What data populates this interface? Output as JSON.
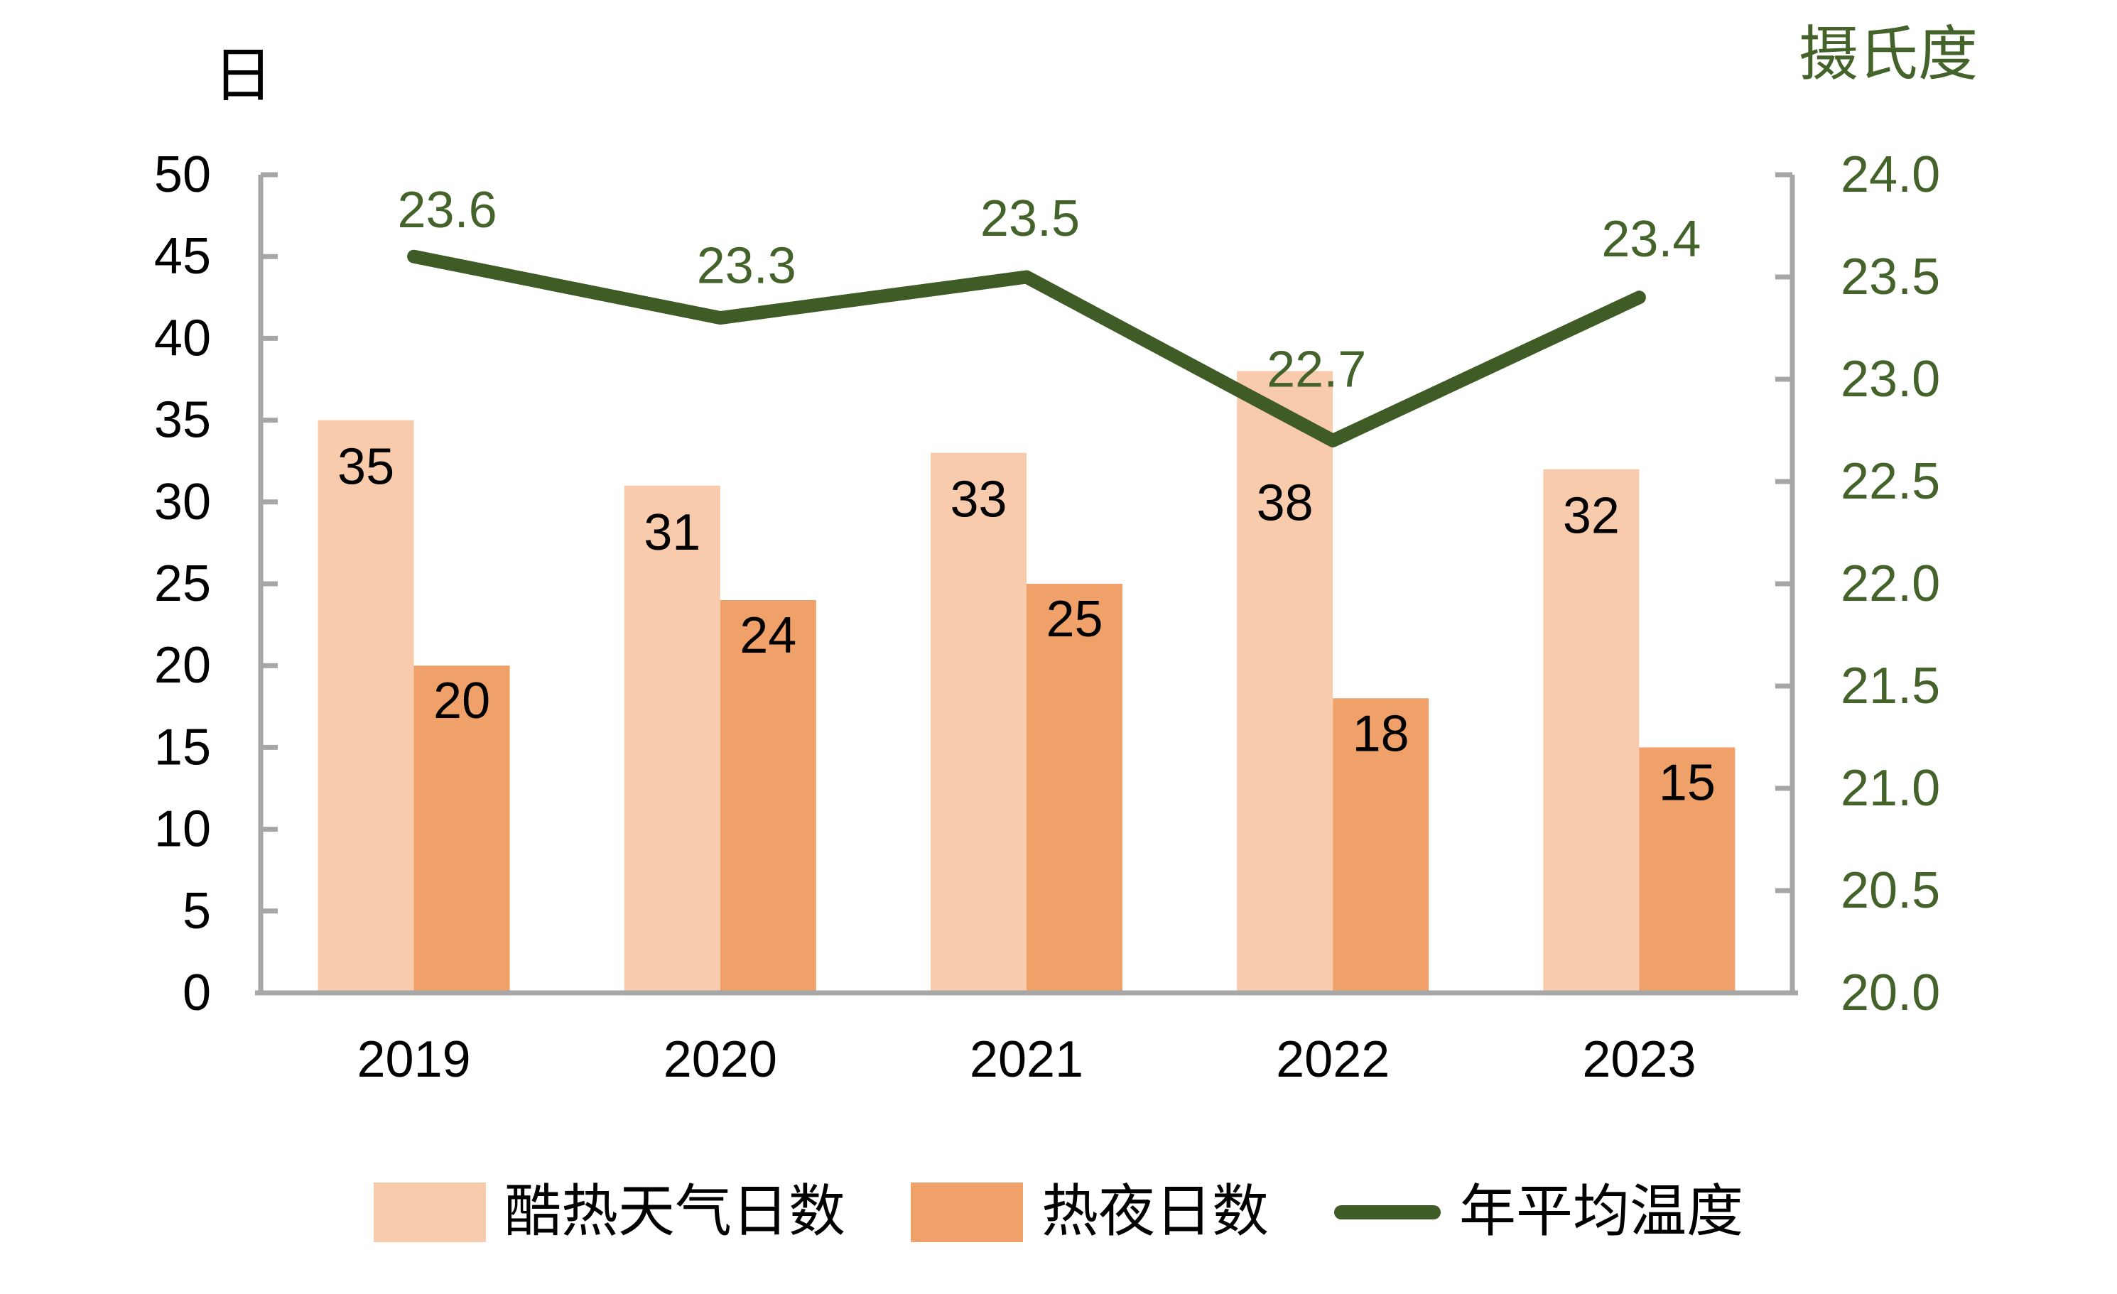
{
  "chart_data": {
    "type": "combo_bar_line",
    "categories": [
      "2019",
      "2020",
      "2021",
      "2022",
      "2023"
    ],
    "series": [
      {
        "name": "酷热天气日数",
        "type": "bar",
        "axis": "left",
        "color": "#F8CBAD",
        "values": [
          35,
          31,
          33,
          38,
          32
        ],
        "labels": [
          "35",
          "31",
          "33",
          "38",
          "32"
        ],
        "label_color": "#000000"
      },
      {
        "name": "热夜日数",
        "type": "bar",
        "axis": "left",
        "color": "#F0A169",
        "values": [
          20,
          24,
          25,
          18,
          15
        ],
        "labels": [
          "20",
          "24",
          "25",
          "18",
          "15"
        ],
        "label_color": "#000000"
      },
      {
        "name": "年平均温度",
        "type": "line",
        "axis": "right",
        "color": "#3F5C27",
        "values": [
          23.6,
          23.3,
          23.5,
          22.7,
          23.4
        ],
        "labels": [
          "23.6",
          "23.3",
          "23.5",
          "22.7",
          "23.4"
        ],
        "label_color": "#44632B"
      }
    ],
    "left_axis": {
      "title": "日",
      "min": 0,
      "max": 50,
      "step": 5,
      "tick_labels": [
        "0",
        "5",
        "10",
        "15",
        "20",
        "25",
        "30",
        "35",
        "40",
        "45",
        "50"
      ],
      "label_color": "#000000"
    },
    "right_axis": {
      "title": "摄氏度",
      "min": 20.0,
      "max": 24.0,
      "step": 0.5,
      "tick_labels": [
        "20.0",
        "20.5",
        "21.0",
        "21.5",
        "22.0",
        "22.5",
        "23.0",
        "23.5",
        "24.0"
      ],
      "label_color": "#44632B"
    },
    "x_axis": {
      "label_color": "#000000"
    },
    "axis_line_color": "#A6A6A6",
    "background": "#FFFFFF",
    "grid": false,
    "legend_position": "bottom"
  }
}
